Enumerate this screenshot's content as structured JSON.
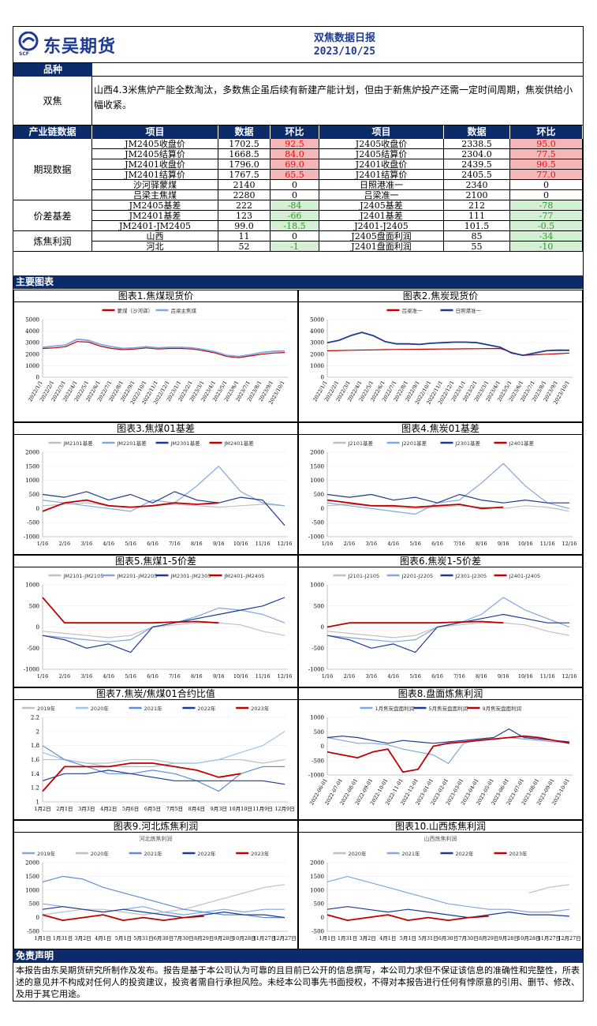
{
  "header": {
    "company": "东吴期货",
    "company_sub": "SCF",
    "title": "双焦数据日报",
    "date": "2023/10/25"
  },
  "variety": {
    "section_label": "品种",
    "name": "双焦",
    "comment": "山西4.3米焦炉产能全数淘汰，多数焦企虽后续有新建产能计划，但由于新焦炉投产还需一定时间周期，焦炭供给小幅收紧。"
  },
  "table": {
    "section_label": "产业链数据",
    "headers": [
      "项目",
      "数据",
      "环比",
      "项目",
      "数据",
      "环比"
    ],
    "groups": [
      {
        "name": "期现数据",
        "rows": [
          [
            "JM2405收盘价",
            "1702.5",
            "92.5",
            "J2405收盘价",
            "2338.5",
            "95.0"
          ],
          [
            "JM2405结算价",
            "1668.5",
            "84.0",
            "J2405结算价",
            "2304.0",
            "77.5"
          ],
          [
            "JM2401收盘价",
            "1796.0",
            "69.0",
            "J2401收盘价",
            "2439.5",
            "90.5"
          ],
          [
            "JM2401结算价",
            "1767.5",
            "65.5",
            "J2401结算价",
            "2405.5",
            "77.0"
          ],
          [
            "沙河驿蒙煤",
            "2140",
            "0",
            "日照港准一",
            "2340",
            "0"
          ],
          [
            "吕梁主焦煤",
            "2280",
            "0",
            "吕梁准一",
            "2100",
            "0"
          ]
        ]
      },
      {
        "name": "价差基差",
        "rows": [
          [
            "JM2405基差",
            "222",
            "-84",
            "J2405基差",
            "212",
            "-78"
          ],
          [
            "JM2401基差",
            "123",
            "-66",
            "J2401基差",
            "111",
            "-77"
          ],
          [
            "JM2401-JM2405",
            "99.0",
            "-18.5",
            "J2401-J2405",
            "101.5",
            "-0.5"
          ]
        ]
      },
      {
        "name": "炼焦利润",
        "rows": [
          [
            "山西",
            "11",
            "0",
            "J2405盘面利润",
            "85",
            "-34"
          ],
          [
            "河北",
            "52",
            "-1",
            "J2401盘面利润",
            "55",
            "-10"
          ]
        ]
      }
    ]
  },
  "charts_section_label": "主要图表",
  "charts": [
    {
      "title": "图表1.焦煤现货价",
      "type": "line",
      "legend": [
        "蒙煤（沙河驿）",
        "吕梁主焦煤"
      ],
      "colors": [
        "#c00000",
        "#7fa7e0"
      ],
      "yticks": [
        "0",
        "1000",
        "2000",
        "3000",
        "4000",
        "5000"
      ],
      "ylim": [
        0,
        5000
      ],
      "xticks": [
        "2022/1/1",
        "2022/2/1",
        "2022/3/1",
        "2022/4/1",
        "2022/5/1",
        "2022/6/1",
        "2022/7/1",
        "2022/8/1",
        "2022/9/1",
        "2022/10/1",
        "2022/11/1",
        "2022/12/1",
        "2023/1/1",
        "2023/2/1",
        "2023/3/1",
        "2023/4/1",
        "2023/5/1",
        "2023/6/1",
        "2023/7/1",
        "2023/8/1",
        "2023/9/1",
        "2023/10/1"
      ],
      "series": [
        [
          2500,
          2550,
          2650,
          3100,
          3050,
          2700,
          2500,
          2400,
          2450,
          2550,
          2450,
          2500,
          2500,
          2450,
          2300,
          2100,
          1800,
          1700,
          1850,
          2000,
          2100,
          2150
        ],
        [
          2600,
          2700,
          2800,
          3300,
          3200,
          2850,
          2650,
          2500,
          2550,
          2650,
          2550,
          2600,
          2600,
          2550,
          2400,
          2200,
          1900,
          1800,
          1950,
          2150,
          2250,
          2280
        ]
      ]
    },
    {
      "title": "图表2.焦炭现货价",
      "type": "line",
      "legend": [
        "吕梁准一",
        "日照港准一"
      ],
      "colors": [
        "#c00000",
        "#1f3a93"
      ],
      "yticks": [
        "0",
        "1000",
        "2000",
        "3000",
        "4000",
        "5000"
      ],
      "ylim": [
        0,
        5000
      ],
      "xticks": [
        "2022/1/1",
        "2022/2/1",
        "2022/3/1",
        "2022/4/1",
        "2022/5/1",
        "2022/6/1",
        "2022/7/1",
        "2022/8/1",
        "2022/9/1",
        "2022/10/1",
        "2022/11/1",
        "2022/12/1",
        "2023/1/1",
        "2023/2/1",
        "2023/3/1",
        "2023/4/1",
        "2023/5/1",
        "2023/6/1",
        "2023/7/1",
        "2023/8/1",
        "2023/9/1",
        "2023/10/1"
      ],
      "series": [
        [
          2300,
          2320,
          2340,
          2360,
          2380,
          2400,
          2410,
          2420,
          2430,
          2440,
          2450,
          2460,
          2470,
          2480,
          2490,
          2500,
          2150,
          1900,
          1950,
          2000,
          2050,
          2100
        ],
        [
          3000,
          3200,
          3600,
          3900,
          3600,
          3100,
          2900,
          2900,
          2850,
          2950,
          3000,
          3050,
          3050,
          3000,
          2800,
          2600,
          2100,
          1900,
          2100,
          2300,
          2350,
          2340
        ]
      ]
    },
    {
      "title": "图表3.焦煤01基差",
      "type": "line",
      "legend": [
        "JM2101基差",
        "JM2201基差",
        "JM2301基差",
        "JM2401基差"
      ],
      "colors": [
        "#bfbfbf",
        "#7fa7e0",
        "#1f3a93",
        "#c00000"
      ],
      "yticks": [
        "-1000",
        "-500",
        "0",
        "500",
        "1000",
        "1500",
        "2000"
      ],
      "ylim": [
        -1000,
        2000
      ],
      "xticks": [
        "1/16",
        "2/16",
        "3/16",
        "4/16",
        "5/16",
        "6/16",
        "7/16",
        "8/16",
        "9/16",
        "10/16",
        "11/16",
        "12/16"
      ],
      "series": [
        [
          100,
          150,
          200,
          100,
          50,
          100,
          150,
          100,
          50,
          100,
          150,
          100
        ],
        [
          300,
          200,
          100,
          0,
          -100,
          300,
          200,
          800,
          1500,
          600,
          200,
          100
        ],
        [
          500,
          400,
          600,
          300,
          500,
          200,
          600,
          300,
          200,
          400,
          300,
          -600
        ],
        [
          -100,
          200,
          300,
          100,
          50,
          100,
          200,
          150,
          200,
          null,
          null,
          null
        ]
      ]
    },
    {
      "title": "图表4.焦炭01基差",
      "type": "line",
      "legend": [
        "J2101基差",
        "J2201基差",
        "J2301基差",
        "J2401基差"
      ],
      "colors": [
        "#bfbfbf",
        "#7fa7e0",
        "#1f3a93",
        "#c00000"
      ],
      "yticks": [
        "-1000",
        "-500",
        "0",
        "500",
        "1000",
        "1500",
        "2000"
      ],
      "ylim": [
        -1000,
        2000
      ],
      "xticks": [
        "1/16",
        "2/16",
        "3/16",
        "4/16",
        "5/16",
        "6/16",
        "7/16",
        "8/16",
        "9/16",
        "10/16",
        "11/16",
        "12/16"
      ],
      "series": [
        [
          100,
          150,
          100,
          50,
          0,
          50,
          100,
          50,
          0,
          100,
          50,
          -100
        ],
        [
          200,
          100,
          0,
          -100,
          -200,
          200,
          300,
          900,
          1600,
          800,
          200,
          0
        ],
        [
          500,
          400,
          500,
          300,
          400,
          200,
          500,
          300,
          200,
          300,
          200,
          200
        ],
        [
          300,
          200,
          100,
          100,
          50,
          100,
          150,
          0,
          50,
          null,
          null,
          null
        ]
      ]
    },
    {
      "title": "图表5.焦煤1-5价差",
      "type": "line",
      "legend": [
        "JM2101-JM2105",
        "JM2201-JM2205",
        "JM2301-JM2305",
        "JM2401-JM2405"
      ],
      "colors": [
        "#bfbfbf",
        "#7fa7e0",
        "#1f3a93",
        "#c00000"
      ],
      "yticks": [
        "-1000",
        "-500",
        "0",
        "500",
        "1000"
      ],
      "ylim": [
        -1000,
        1000
      ],
      "xticks": [
        "1/16",
        "2/16",
        "3/16",
        "4/16",
        "5/16",
        "6/16",
        "7/16",
        "8/16",
        "9/16",
        "10/16",
        "11/16",
        "12/16"
      ],
      "series": [
        [
          -100,
          -150,
          -200,
          -250,
          -200,
          0,
          50,
          100,
          100,
          50,
          -100,
          -200
        ],
        [
          -200,
          -250,
          -300,
          -350,
          -300,
          0,
          100,
          250,
          450,
          400,
          300,
          100
        ],
        [
          -200,
          -300,
          -500,
          -400,
          -600,
          0,
          100,
          200,
          300,
          400,
          500,
          700
        ],
        [
          700,
          100,
          100,
          100,
          100,
          100,
          120,
          130,
          100,
          null,
          null,
          null
        ]
      ]
    },
    {
      "title": "图表6.焦炭1-5价差",
      "type": "line",
      "legend": [
        "J2101-J2105",
        "J2201-J2205",
        "J2301-J2305",
        "J2401-J2405"
      ],
      "colors": [
        "#bfbfbf",
        "#7fa7e0",
        "#1f3a93",
        "#c00000"
      ],
      "yticks": [
        "-1000",
        "-500",
        "0",
        "500",
        "1000"
      ],
      "ylim": [
        -1000,
        1000
      ],
      "xticks": [
        "1/16",
        "2/16",
        "3/16",
        "4/16",
        "5/16",
        "6/16",
        "7/16",
        "8/16",
        "9/16",
        "10/16",
        "11/16",
        "12/16"
      ],
      "series": [
        [
          -100,
          -150,
          -200,
          -250,
          -200,
          0,
          50,
          100,
          100,
          50,
          -100,
          -200
        ],
        [
          -200,
          -250,
          -300,
          -350,
          -300,
          0,
          100,
          300,
          700,
          400,
          200,
          0
        ],
        [
          -200,
          -300,
          -500,
          -400,
          -600,
          0,
          100,
          200,
          300,
          200,
          100,
          100
        ],
        [
          0,
          100,
          100,
          100,
          100,
          100,
          120,
          130,
          100,
          null,
          null,
          null
        ]
      ]
    },
    {
      "title": "图表7.焦炭/焦煤01合约比值",
      "type": "line",
      "legend": [
        "2019年",
        "2020年",
        "2021年",
        "2022年",
        "2023年"
      ],
      "colors": [
        "#bfbfbf",
        "#9ec3e8",
        "#5f8fd0",
        "#1f3a93",
        "#c00000"
      ],
      "yticks": [
        "1",
        "1.2",
        "1.4",
        "1.6",
        "1.8",
        "2",
        "2.2"
      ],
      "ylim": [
        1,
        2.2
      ],
      "xticks": [
        "1月2日",
        "2月1日",
        "3月3日",
        "4月2日",
        "5月6日",
        "6月5日",
        "7月5日",
        "8月4日",
        "9月3日",
        "10月10日",
        "11月9日",
        "12月9日"
      ],
      "series": [
        [
          1.6,
          1.6,
          1.55,
          1.55,
          1.6,
          1.6,
          1.55,
          1.55,
          1.6,
          1.6,
          1.55,
          1.6
        ],
        [
          1.7,
          1.6,
          1.55,
          1.5,
          1.5,
          1.5,
          1.55,
          1.55,
          1.6,
          1.7,
          1.8,
          2.0
        ],
        [
          1.8,
          1.6,
          1.5,
          1.4,
          1.4,
          1.45,
          1.4,
          1.3,
          1.15,
          1.4,
          1.5,
          1.5
        ],
        [
          1.3,
          1.4,
          1.4,
          1.45,
          1.4,
          1.35,
          1.3,
          1.3,
          1.3,
          1.3,
          1.3,
          1.25
        ],
        [
          1.15,
          1.5,
          1.5,
          1.5,
          1.55,
          1.55,
          1.5,
          1.45,
          1.35,
          1.4,
          null,
          null
        ]
      ]
    },
    {
      "title": "图表8.盘面炼焦利润",
      "type": "line",
      "legend": [
        "1月焦炭盘面利润",
        "5月焦炭盘面利润",
        "9月焦炭盘面利润"
      ],
      "colors": [
        "#7fa7e0",
        "#1f3a93",
        "#c00000"
      ],
      "yticks": [
        "-1000",
        "-500",
        "0",
        "500",
        "1000"
      ],
      "ylim": [
        -1000,
        1000
      ],
      "xticks": [
        "2022-06-01",
        "2022-07-01",
        "2022-08-01",
        "2022-09-01",
        "2022-10-01",
        "2022-11-01",
        "2022-12-01",
        "2023-01-01",
        "2023-02-01",
        "2023-03-01",
        "2023-04-01",
        "2023-05-01",
        "2023-06-01",
        "2023-07-01",
        "2023-08-01",
        "2023-09-01",
        "2023-10-01"
      ],
      "series": [
        [
          300,
          200,
          100,
          100,
          50,
          -100,
          -200,
          -300,
          -600,
          100,
          200,
          250,
          300,
          250,
          200,
          150,
          150
        ],
        [
          300,
          350,
          300,
          200,
          100,
          200,
          150,
          100,
          150,
          200,
          250,
          300,
          600,
          300,
          250,
          200,
          150
        ],
        [
          -200,
          -300,
          -400,
          -200,
          -100,
          -900,
          -800,
          0,
          100,
          150,
          200,
          250,
          300,
          350,
          300,
          200,
          100
        ]
      ]
    },
    {
      "title": "图表9.河北炼焦利润",
      "subtitle": "河北炼焦利润",
      "type": "line",
      "legend": [
        "2019年",
        "2020年",
        "2021年",
        "2022年",
        "2023年"
      ],
      "colors": [
        "#7fa7e0",
        "#bfbfbf",
        "#5f8fd0",
        "#1f3a93",
        "#c00000"
      ],
      "yticks": [
        "-500",
        "0",
        "500",
        "1000",
        "1500",
        "2000"
      ],
      "ylim": [
        -500,
        2000
      ],
      "xticks": [
        "1月1日",
        "1月31日",
        "3月2日",
        "4月1日",
        "5月1日",
        "5月31日",
        "6月30日",
        "7月30日",
        "8月29日",
        "9月28日",
        "10月28日",
        "11月27日",
        "12月27日"
      ],
      "series": [
        [
          500,
          400,
          300,
          200,
          300,
          400,
          200,
          100,
          200,
          300,
          200,
          300,
          300
        ],
        [
          100,
          200,
          300,
          300,
          200,
          100,
          200,
          300,
          500,
          700,
          900,
          1100,
          1200
        ],
        [
          1300,
          1500,
          1400,
          1100,
          900,
          700,
          500,
          300,
          200,
          100,
          100,
          0,
          0
        ],
        [
          300,
          400,
          300,
          200,
          300,
          200,
          100,
          0,
          100,
          200,
          100,
          100,
          0
        ],
        [
          100,
          -100,
          0,
          100,
          -100,
          0,
          -100,
          0,
          50,
          null,
          null,
          null,
          null
        ]
      ]
    },
    {
      "title": "图表10.山西炼焦利润",
      "subtitle": "山西炼焦利润",
      "type": "line",
      "legend": [
        "2020年",
        "2021年",
        "2022年",
        "2023年"
      ],
      "colors": [
        "#bfbfbf",
        "#7fa7e0",
        "#1f3a93",
        "#c00000"
      ],
      "yticks": [
        "-500",
        "0",
        "500",
        "1000",
        "1500",
        "2000"
      ],
      "ylim": [
        -500,
        2000
      ],
      "xticks": [
        "1月1日",
        "1月31日",
        "3月2日",
        "4月1日",
        "5月1日",
        "5月31日",
        "6月30日",
        "7月30日",
        "8月29日",
        "9月28日",
        "10月28日",
        "11月27日",
        "12月27日"
      ],
      "series": [
        [
          null,
          null,
          null,
          null,
          null,
          null,
          null,
          null,
          null,
          null,
          900,
          1100,
          1200
        ],
        [
          1300,
          1500,
          1300,
          1100,
          900,
          700,
          500,
          400,
          300,
          300,
          200,
          200,
          300
        ],
        [
          300,
          400,
          300,
          200,
          300,
          200,
          100,
          0,
          100,
          200,
          100,
          100,
          50
        ],
        [
          100,
          -100,
          0,
          100,
          -100,
          0,
          -100,
          0,
          50,
          null,
          null,
          null,
          null
        ]
      ]
    }
  ],
  "disclaimer": {
    "section_label": "免责声明",
    "text": "本报告由东吴期货研究所制作及发布。报告是基于本公司认为可靠的且目前已公开的信息撰写，本公司力求但不保证该信息的准确性和完整性，所表述的意见并不构成对任何人的投资建议，投资者需自行承担风险。未经本公司事先书面授权，不得对本报告进行任何有悖原意的引用、删节、修改、及用于其它用途。"
  }
}
